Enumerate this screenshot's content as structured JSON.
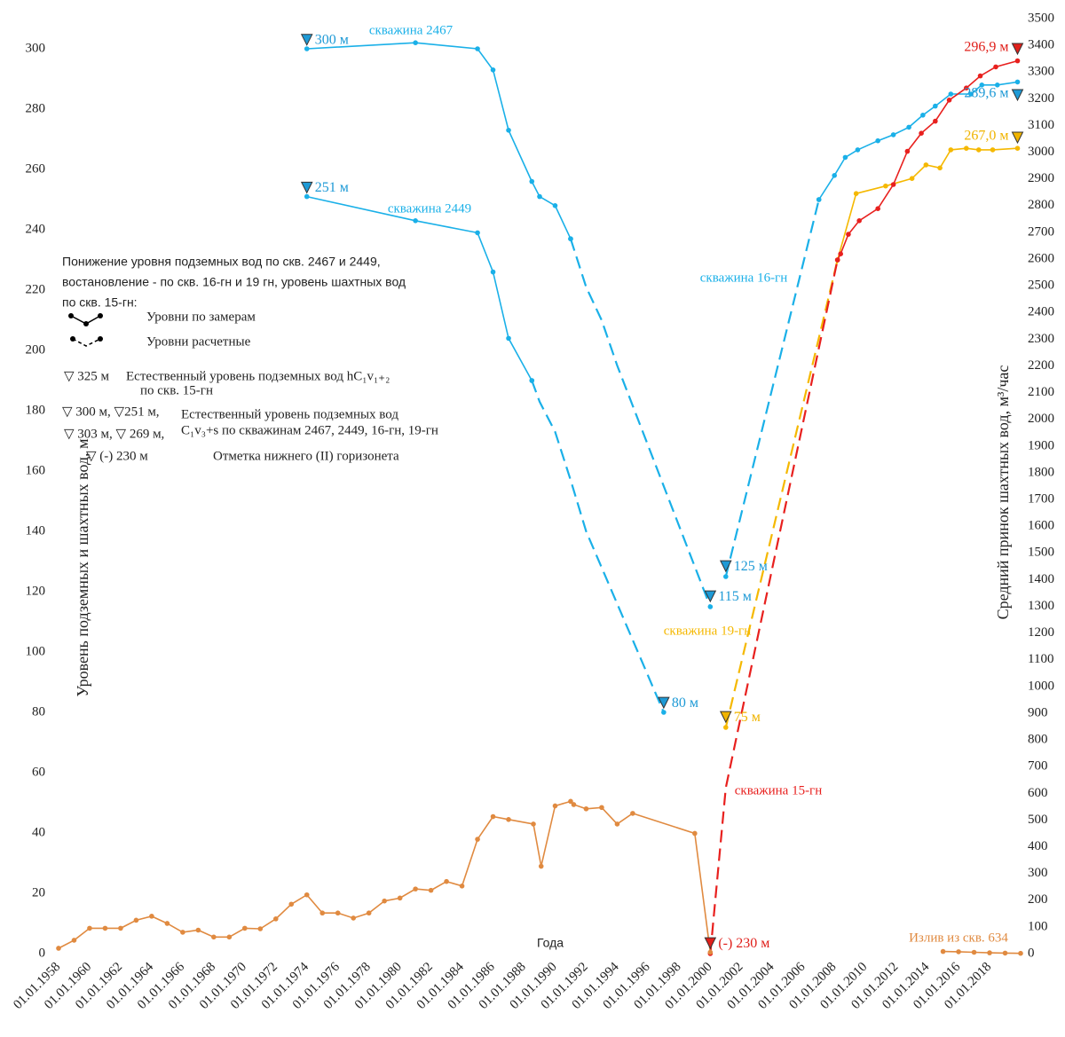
{
  "chart_data": {
    "type": "line",
    "y_title": "Уровень подземных и шахтных вод, м",
    "y2_title": "Средний принок шахтных вод, м³/час",
    "x_title": "Года",
    "xlim": [
      1957.6,
      2020
    ],
    "ylim": [
      0,
      310
    ],
    "y2lim": [
      0,
      3500
    ],
    "xticks": [
      {
        "value": 1958,
        "label": "01.01.1958"
      },
      {
        "value": 1960,
        "label": "01.01.1960"
      },
      {
        "value": 1962,
        "label": "01.01.1962"
      },
      {
        "value": 1964,
        "label": "01.01.1964"
      },
      {
        "value": 1966,
        "label": "01.01.1966"
      },
      {
        "value": 1968,
        "label": "01.01.1968"
      },
      {
        "value": 1970,
        "label": "01.01.1970"
      },
      {
        "value": 1972,
        "label": "01.01.1972"
      },
      {
        "value": 1974,
        "label": "01.01.1974"
      },
      {
        "value": 1976,
        "label": "01.01.1976"
      },
      {
        "value": 1978,
        "label": "01.01.1978"
      },
      {
        "value": 1980,
        "label": "01.01.1980"
      },
      {
        "value": 1982,
        "label": "01.01.1982"
      },
      {
        "value": 1984,
        "label": "01.01.1984"
      },
      {
        "value": 1986,
        "label": "01.01.1986"
      },
      {
        "value": 1988,
        "label": "01.01.1988"
      },
      {
        "value": 1990,
        "label": "01.01.1990"
      },
      {
        "value": 1992,
        "label": "01.01.1992"
      },
      {
        "value": 1994,
        "label": "01.01.1994"
      },
      {
        "value": 1996,
        "label": "01.01.1996"
      },
      {
        "value": 1998,
        "label": "01.01.1998"
      },
      {
        "value": 2000,
        "label": "01.01.2000"
      },
      {
        "value": 2002,
        "label": "01.01.2002"
      },
      {
        "value": 2004,
        "label": "01.01.2004"
      },
      {
        "value": 2006,
        "label": "01.01.2006"
      },
      {
        "value": 2008,
        "label": "01.01.2008"
      },
      {
        "value": 2010,
        "label": "01.01.2010"
      },
      {
        "value": 2012,
        "label": "01.01.2012"
      },
      {
        "value": 2014,
        "label": "01.01.2014"
      },
      {
        "value": 2016,
        "label": "01.01.2016"
      },
      {
        "value": 2018,
        "label": "01.01.2018"
      }
    ],
    "yticks": [
      0,
      20,
      40,
      60,
      80,
      100,
      120,
      140,
      160,
      180,
      200,
      220,
      240,
      260,
      280,
      300
    ],
    "y2ticks": [
      0,
      100,
      200,
      300,
      400,
      500,
      600,
      700,
      800,
      900,
      1000,
      1100,
      1200,
      1300,
      1400,
      1500,
      1600,
      1700,
      1800,
      1900,
      2000,
      2100,
      2200,
      2300,
      2400,
      2500,
      2600,
      2700,
      2800,
      2900,
      3000,
      3100,
      3200,
      3300,
      3400,
      3500
    ],
    "series": [
      {
        "name": "скважина 2467",
        "color": "#1ab0e8",
        "dashed": false,
        "x": [
          1974,
          1981,
          1985,
          1986,
          1987,
          1988.5,
          1989,
          1990,
          1991
        ],
        "values": [
          300,
          302,
          300,
          293,
          273,
          256,
          251,
          248,
          237
        ]
      },
      {
        "color": "#1ab0e8",
        "dashed": true,
        "x": [
          1991,
          1992,
          1993,
          1994,
          2000
        ],
        "values": [
          237,
          221,
          210,
          195,
          115
        ]
      },
      {
        "name": "скважина 2449",
        "color": "#1ab0e8",
        "dashed": false,
        "x": [
          1974,
          1981,
          1985,
          1986,
          1987,
          1988.5
        ],
        "values": [
          251,
          243,
          239,
          226,
          204,
          190
        ]
      },
      {
        "color": "#1ab0e8",
        "dashed": true,
        "x": [
          1988.5,
          1989,
          1990,
          1991,
          1992,
          1997
        ],
        "values": [
          190,
          183,
          173,
          157,
          140,
          80
        ]
      },
      {
        "name": "скважина 16-гн",
        "color": "#1ab0e8",
        "dashed": true,
        "x": [
          2001,
          2007
        ],
        "values": [
          125,
          250
        ]
      },
      {
        "color": "#1ab0e8",
        "dashed": false,
        "x": [
          2007,
          2008,
          2008.7,
          2009.5,
          2010.8,
          2011.8,
          2012.8,
          2013.7,
          2014.5,
          2015.5,
          2016.8,
          2017.5,
          2018.5,
          2019.8
        ],
        "values": [
          250,
          258,
          264,
          266.5,
          269.5,
          271.5,
          274,
          278,
          281,
          285,
          285,
          288,
          288,
          289
        ]
      },
      {
        "name": "скважина 19-гн",
        "color": "#f5b800",
        "dashed": true,
        "x": [
          2001,
          2008.2
        ],
        "values": [
          75,
          230
        ]
      },
      {
        "color": "#f5b800",
        "dashed": false,
        "x": [
          2008.2,
          2009.4,
          2011.3,
          2013,
          2013.9,
          2014.8,
          2015.5,
          2016.5,
          2017.3,
          2018.2,
          2019.8
        ],
        "values": [
          230,
          252,
          254.5,
          257,
          261.5,
          260.5,
          266.5,
          267,
          266.5,
          266.5,
          267
        ]
      },
      {
        "name": "скважина 15-гн",
        "color": "#e8201e",
        "dashed": true,
        "x": [
          2000,
          2001,
          2008.2
        ],
        "values": [
          0,
          55,
          230
        ]
      },
      {
        "color": "#e8201e",
        "dashed": false,
        "x": [
          2008.2,
          2008.4,
          2008.9,
          2009.6,
          2010.8,
          2011.8,
          2012.7,
          2013.6,
          2014.5,
          2015.4,
          2016.5,
          2017.4,
          2018.4,
          2019.8
        ],
        "values": [
          230,
          232,
          238.5,
          243,
          247,
          255,
          266,
          272,
          276,
          283,
          287,
          291,
          294,
          296
        ]
      },
      {
        "color": "#e08a40",
        "dashed": false,
        "axis": "y2",
        "x": [
          1958,
          1959,
          1960,
          1961,
          1962,
          1963,
          1964,
          1965,
          1966,
          1967,
          1968,
          1969,
          1970,
          1971,
          1972,
          1973,
          1974,
          1975,
          1976,
          1977,
          1978,
          1979,
          1980,
          1981,
          1982,
          1983,
          1984,
          1985,
          1986,
          1987,
          1988.6,
          1989.1,
          1990,
          1991,
          1991.2,
          1992,
          1993,
          1994,
          1995,
          1999,
          2000
        ],
        "values": [
          20,
          50,
          95,
          95,
          95,
          125,
          140,
          113,
          80,
          88,
          62,
          62,
          95,
          93,
          130,
          185,
          220,
          152,
          152,
          133,
          152,
          197,
          208,
          242,
          237,
          270,
          253,
          428,
          513,
          502,
          485,
          327,
          553,
          570,
          558,
          542,
          547,
          485,
          525,
          450,
          5
        ]
      },
      {
        "name": "Излив из скв. 634",
        "color": "#e08a40",
        "dashed": false,
        "axis": "y2",
        "x": [
          2015,
          2016,
          2017,
          2018,
          2019,
          2020
        ],
        "values": [
          8,
          7,
          5,
          3,
          2,
          1
        ]
      }
    ],
    "markers": [
      {
        "x": 1974,
        "y": 303,
        "label": "300 м",
        "color": "#1e9ad6"
      },
      {
        "x": 1974,
        "y": 254,
        "label": "251 м",
        "color": "#1e9ad6"
      },
      {
        "x": 2000,
        "y": 118.5,
        "label": "115 м",
        "color": "#1e9ad6"
      },
      {
        "x": 1997,
        "y": 83.2,
        "label": "80 м",
        "color": "#1e9ad6"
      },
      {
        "x": 2001,
        "y": 128.5,
        "label": "125 м",
        "color": "#1e9ad6"
      },
      {
        "x": 2001,
        "y": 78.5,
        "label": "75 м",
        "color": "#f0b400"
      },
      {
        "x": 2000,
        "y": 3.5,
        "label": "(-) 230 м",
        "color": "#e0201b"
      },
      {
        "x": 2019.8,
        "y": 300,
        "label": "296,9 м",
        "color": "#e0201b"
      },
      {
        "x": 2019.8,
        "y": 284.7,
        "label": "289,6 м",
        "color": "#1e9ad6"
      },
      {
        "x": 2019.8,
        "y": 270.6,
        "label": "267,0 м",
        "color": "#f0b400"
      }
    ],
    "note": {
      "heading": [
        "Понижение уровня подземных вод по скв. 2467 и 2449,",
        "востановление - по скв. 16-гн и 19 гн, уровень шахтных вод",
        "по скв. 15-гн:"
      ],
      "measured": "Уровни по замерам",
      "calculated": "Уровни расчетные",
      "lines": [
        "▽ 325 м",
        "Естественный уровень подземных вод hC₁v₁₊₂",
        "по скв. 15-гн",
        "▽ 300 м, ▽251 м,",
        "Естественный уровень подземных вод",
        "▽ 303 м, ▽ 269 м,",
        "C₁v₃+s по скважинам 2467, 2449, 16-гн, 19-гн",
        "▽ (-) 230 м",
        "Отметка нижнего (II) горизонета"
      ]
    }
  }
}
